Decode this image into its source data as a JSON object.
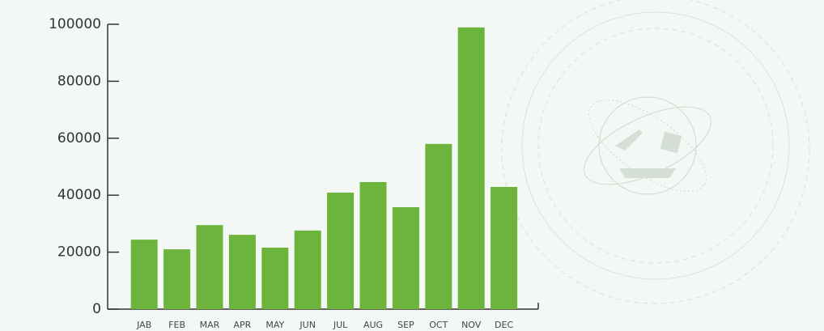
{
  "chart_data": {
    "type": "bar",
    "categories": [
      "JAB",
      "FEB",
      "MAR",
      "APR",
      "MAY",
      "JUN",
      "JUL",
      "AUG",
      "SEP",
      "OCT",
      "NOV",
      "DEC"
    ],
    "values": [
      24400,
      21000,
      29500,
      26100,
      21600,
      27600,
      40900,
      44600,
      35800,
      58000,
      98900,
      42900
    ],
    "color": "#6cb43c",
    "ylim": [
      0,
      100000
    ],
    "yticks": [
      0,
      20000,
      40000,
      60000,
      80000,
      100000
    ],
    "grid": false
  }
}
